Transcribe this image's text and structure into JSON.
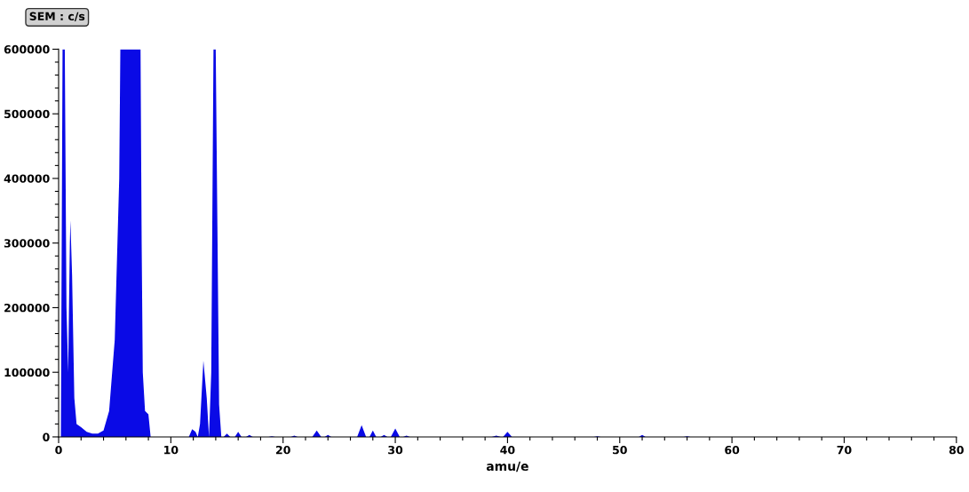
{
  "chart_data": {
    "type": "area",
    "ylabel": "SEM : c/s",
    "xlabel": "amu/e",
    "grid": false,
    "legend": false,
    "xlim": [
      0,
      80
    ],
    "ylim": [
      0,
      600000
    ],
    "xticks": [
      0,
      {
        "value": 2,
        "label": null
      },
      {
        "value": 4,
        "label": null
      },
      {
        "value": 6,
        "label": null
      },
      {
        "value": 8,
        "label": null
      },
      10,
      {
        "value": 12,
        "label": null
      },
      {
        "value": 14,
        "label": null
      },
      {
        "value": 16,
        "label": null
      },
      {
        "value": 18,
        "label": null
      },
      20,
      {
        "value": 22,
        "label": null
      },
      {
        "value": 24,
        "label": null
      },
      {
        "value": 26,
        "label": null
      },
      {
        "value": 28,
        "label": null
      },
      30,
      {
        "value": 32,
        "label": null
      },
      {
        "value": 34,
        "label": null
      },
      {
        "value": 36,
        "label": null
      },
      {
        "value": 38,
        "label": null
      },
      40,
      {
        "value": 42,
        "label": null
      },
      {
        "value": 44,
        "label": null
      },
      {
        "value": 46,
        "label": null
      },
      {
        "value": 48,
        "label": null
      },
      50,
      {
        "value": 52,
        "label": null
      },
      {
        "value": 54,
        "label": null
      },
      {
        "value": 56,
        "label": null
      },
      {
        "value": 58,
        "label": null
      },
      60,
      {
        "value": 62,
        "label": null
      },
      {
        "value": 64,
        "label": null
      },
      {
        "value": 66,
        "label": null
      },
      {
        "value": 68,
        "label": null
      },
      70,
      {
        "value": 72,
        "label": null
      },
      {
        "value": 74,
        "label": null
      },
      {
        "value": 76,
        "label": null
      },
      {
        "value": 78,
        "label": null
      },
      80
    ],
    "yticks": [
      0,
      {
        "value": 20000,
        "label": null
      },
      {
        "value": 40000,
        "label": null
      },
      {
        "value": 60000,
        "label": null
      },
      {
        "value": 80000,
        "label": null
      },
      100000,
      {
        "value": 120000,
        "label": null
      },
      {
        "value": 140000,
        "label": null
      },
      {
        "value": 160000,
        "label": null
      },
      {
        "value": 180000,
        "label": null
      },
      200000,
      {
        "value": 220000,
        "label": null
      },
      {
        "value": 240000,
        "label": null
      },
      {
        "value": 260000,
        "label": null
      },
      {
        "value": 280000,
        "label": null
      },
      300000,
      {
        "value": 320000,
        "label": null
      },
      {
        "value": 340000,
        "label": null
      },
      {
        "value": 360000,
        "label": null
      },
      {
        "value": 380000,
        "label": null
      },
      400000,
      {
        "value": 420000,
        "label": null
      },
      {
        "value": 440000,
        "label": null
      },
      {
        "value": 460000,
        "label": null
      },
      {
        "value": 480000,
        "label": null
      },
      500000,
      {
        "value": 520000,
        "label": null
      },
      {
        "value": 540000,
        "label": null
      },
      {
        "value": 560000,
        "label": null
      },
      {
        "value": 580000,
        "label": null
      },
      600000
    ],
    "series": [
      {
        "color": "#0a0ae6",
        "x": [
          0.2,
          0.35,
          0.55,
          0.7,
          0.85,
          1.0,
          1.05,
          1.2,
          1.4,
          1.6,
          2.0,
          2.5,
          3.0,
          3.5,
          4.0,
          4.5,
          5.0,
          5.4,
          5.5,
          7.3,
          7.4,
          7.5,
          7.7,
          8.0,
          8.2,
          11.6,
          11.9,
          12.2,
          12.4,
          12.6,
          12.9,
          13.2,
          13.4,
          13.6,
          13.8,
          14.0,
          14.3,
          14.5,
          14.7,
          15.0,
          15.3,
          15.7,
          16.0,
          16.3,
          16.7,
          17.0,
          17.3,
          18.7,
          19.0,
          19.3,
          20.7,
          21.0,
          21.3,
          22.6,
          23.0,
          23.4,
          23.7,
          24.0,
          24.3,
          26.6,
          27.0,
          27.4,
          27.7,
          28.0,
          28.3,
          28.7,
          29.0,
          29.3,
          29.6,
          30.0,
          30.4,
          30.7,
          31.0,
          31.3,
          38.6,
          39.0,
          39.4,
          39.6,
          40.0,
          40.4,
          47.7,
          48.0,
          48.3,
          51.7,
          52.0,
          52.3,
          55.7,
          56.0,
          56.3
        ],
        "values": [
          0,
          600000,
          600000,
          200000,
          100000,
          300000,
          335000,
          250000,
          60000,
          20000,
          15000,
          8000,
          5000,
          5000,
          10000,
          40000,
          150000,
          400000,
          600000,
          600000,
          300000,
          100000,
          40000,
          35000,
          0,
          0,
          12000,
          8000,
          0,
          20000,
          118000,
          60000,
          0,
          100000,
          600000,
          600000,
          50000,
          0,
          0,
          5000,
          0,
          0,
          8000,
          0,
          0,
          3000,
          0,
          0,
          1000,
          0,
          0,
          2000,
          0,
          0,
          10000,
          0,
          0,
          3000,
          0,
          0,
          18000,
          0,
          0,
          10000,
          0,
          0,
          3000,
          0,
          0,
          13000,
          0,
          0,
          2000,
          0,
          0,
          2000,
          0,
          0,
          8000,
          0,
          0,
          1000,
          0,
          0,
          3000,
          0,
          0,
          1000,
          0
        ]
      }
    ]
  }
}
